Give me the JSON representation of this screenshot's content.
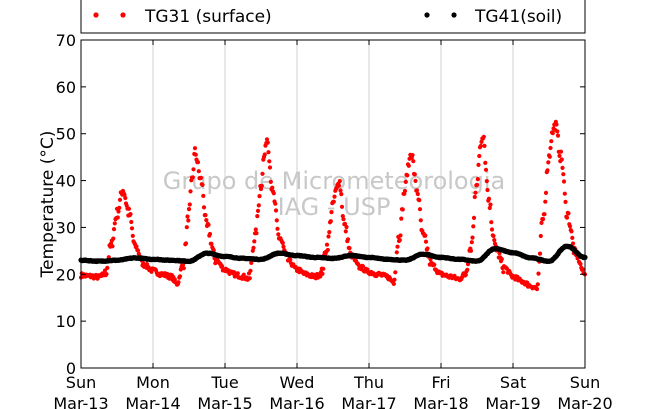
{
  "chart_data": {
    "type": "scatter",
    "title": "",
    "xlabel": "",
    "ylabel": "Temperature (°C)",
    "ylim": [
      0,
      70
    ],
    "yticks": [
      0,
      10,
      20,
      30,
      40,
      50,
      60,
      70
    ],
    "xlim": [
      "2016-03-13 00:00",
      "2016-03-20 00:00"
    ],
    "xticks": [
      {
        "day": "Sun",
        "date": "Mar-13"
      },
      {
        "day": "Mon",
        "date": "Mar-14"
      },
      {
        "day": "Tue",
        "date": "Mar-15"
      },
      {
        "day": "Wed",
        "date": "Mar-16"
      },
      {
        "day": "Thu",
        "date": "Mar-17"
      },
      {
        "day": "Fri",
        "date": "Mar-18"
      },
      {
        "day": "Sat",
        "date": "Mar-19"
      },
      {
        "day": "Sun",
        "date": "Mar-20"
      }
    ],
    "grid": "vertical",
    "legend_position": "top",
    "watermark": [
      "Grupo de Micrometeorologia",
      "IAG - USP"
    ],
    "series": [
      {
        "name": "TG31 (surface)",
        "color": "#ff0000",
        "x": [
          "03-13 00:00",
          "03-13 03:00",
          "03-13 06:00",
          "03-13 08:00",
          "03-13 10:00",
          "03-13 12:00",
          "03-13 14:00",
          "03-13 16:00",
          "03-13 18:00",
          "03-13 21:00",
          "03-14 00:00",
          "03-14 03:00",
          "03-14 06:00",
          "03-14 08:00",
          "03-14 10:00",
          "03-14 12:00",
          "03-14 13:00",
          "03-14 14:00",
          "03-14 16:00",
          "03-14 18:00",
          "03-14 21:00",
          "03-15 00:00",
          "03-15 03:00",
          "03-15 06:00",
          "03-15 08:00",
          "03-15 10:00",
          "03-15 12:00",
          "03-15 13:00",
          "03-15 14:00",
          "03-15 16:00",
          "03-15 18:00",
          "03-15 21:00",
          "03-16 00:00",
          "03-16 03:00",
          "03-16 06:00",
          "03-16 08:00",
          "03-16 10:00",
          "03-16 12:00",
          "03-16 13:00",
          "03-16 14:00",
          "03-16 16:00",
          "03-16 18:00",
          "03-16 21:00",
          "03-17 00:00",
          "03-17 03:00",
          "03-17 06:00",
          "03-17 08:00",
          "03-17 10:00",
          "03-17 12:00",
          "03-17 13:00",
          "03-17 14:00",
          "03-17 16:00",
          "03-17 18:00",
          "03-17 21:00",
          "03-18 00:00",
          "03-18 03:00",
          "03-18 06:00",
          "03-18 08:00",
          "03-18 10:00",
          "03-18 12:00",
          "03-18 13:00",
          "03-18 14:00",
          "03-18 16:00",
          "03-18 18:00",
          "03-18 21:00",
          "03-19 00:00",
          "03-19 03:00",
          "03-19 06:00",
          "03-19 08:00",
          "03-19 10:00",
          "03-19 12:00",
          "03-19 13:00",
          "03-19 14:00",
          "03-19 16:00",
          "03-19 18:00",
          "03-19 21:00",
          "03-20 00:00"
        ],
        "y": [
          19.8,
          19.6,
          19.4,
          20,
          26,
          33,
          38,
          33,
          26,
          22,
          20.8,
          20,
          19.5,
          18,
          22,
          33,
          40,
          46,
          40,
          30,
          23,
          21,
          20,
          19.5,
          19,
          28,
          39,
          45,
          49,
          37,
          28,
          23,
          21,
          20,
          19.5,
          20,
          26,
          35,
          38,
          40,
          30,
          24,
          21.5,
          20.5,
          20,
          19.5,
          18.5,
          28,
          38,
          43,
          46,
          38,
          28,
          22,
          20,
          19.5,
          19,
          20,
          26,
          40,
          47,
          49,
          35,
          26,
          21.5,
          19.5,
          18.5,
          17.5,
          17,
          32,
          45,
          50,
          52,
          45,
          33,
          24,
          20
        ]
      },
      {
        "name": "TG41(soil)",
        "color": "#000000",
        "x": [
          "03-13 00:00",
          "03-13 06:00",
          "03-13 12:00",
          "03-13 18:00",
          "03-14 00:00",
          "03-14 06:00",
          "03-14 12:00",
          "03-14 18:00",
          "03-15 00:00",
          "03-15 06:00",
          "03-15 12:00",
          "03-15 18:00",
          "03-16 00:00",
          "03-16 06:00",
          "03-16 12:00",
          "03-16 18:00",
          "03-17 00:00",
          "03-17 06:00",
          "03-17 12:00",
          "03-17 18:00",
          "03-18 00:00",
          "03-18 06:00",
          "03-18 12:00",
          "03-18 18:00",
          "03-19 00:00",
          "03-19 06:00",
          "03-19 12:00",
          "03-19 18:00",
          "03-20 00:00"
        ],
        "y": [
          23,
          22.8,
          23,
          23.5,
          23.2,
          23,
          22.8,
          24.5,
          23.8,
          23.4,
          23.2,
          24.5,
          24,
          23.6,
          23.4,
          24,
          23.6,
          23.2,
          23,
          24.3,
          23.6,
          23.2,
          22.8,
          25.5,
          24.6,
          23.5,
          22.8,
          26,
          23.6
        ]
      }
    ]
  }
}
